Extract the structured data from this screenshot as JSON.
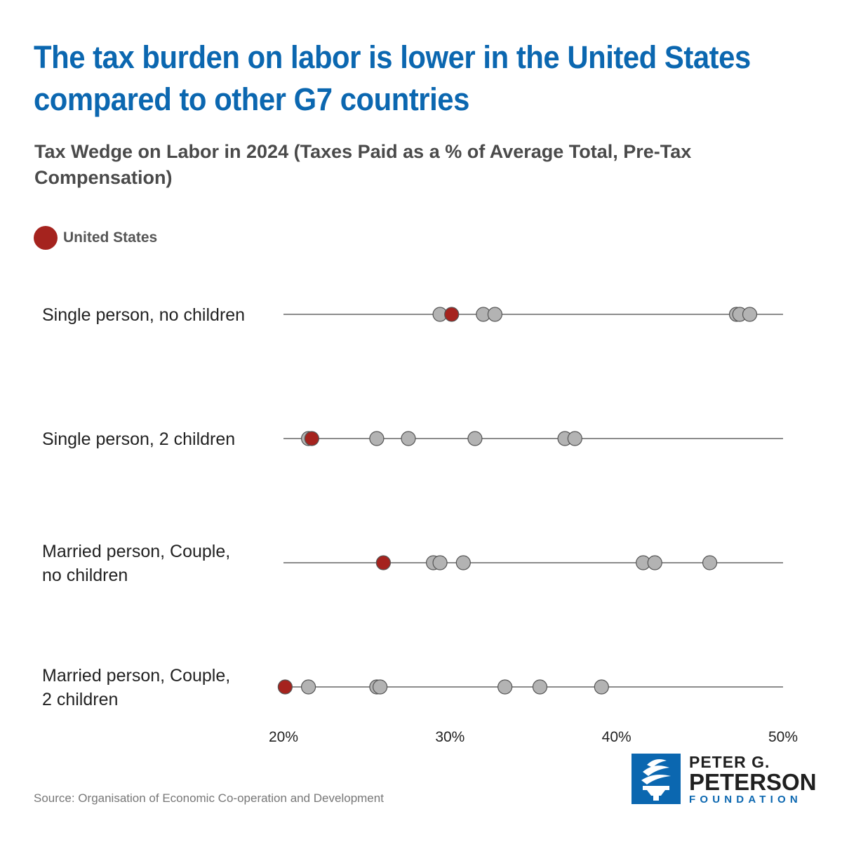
{
  "chart_data": {
    "type": "scatter",
    "title": "The tax burden on labor is lower in the United States compared to other G7 countries",
    "subtitle": "Tax Wedge on Labor in 2024 (Taxes Paid as a % of Average Total, Pre-Tax Compensation)",
    "legend": [
      {
        "label": "United States",
        "color": "#a5231e"
      }
    ],
    "legend_position": "top-left",
    "xlim": [
      20,
      50
    ],
    "xticks": [
      20,
      30,
      40,
      50
    ],
    "xtick_labels": [
      "20%",
      "30%",
      "40%",
      "50%"
    ],
    "xlabel": "",
    "ylabel": "",
    "grid": false,
    "point_color": "#b3b3b3",
    "highlight_color": "#a5231e",
    "categories": [
      {
        "label_lines": [
          "Single person, no children"
        ],
        "us": 30.1,
        "others": [
          29.4,
          32.0,
          32.7,
          47.2,
          47.4,
          48.0
        ]
      },
      {
        "label_lines": [
          "Single person, 2 children"
        ],
        "us": 21.7,
        "others": [
          21.5,
          25.6,
          27.5,
          31.5,
          36.9,
          37.5
        ]
      },
      {
        "label_lines": [
          "Married person, Couple,",
          "no children"
        ],
        "us": 26.0,
        "others": [
          29.0,
          29.4,
          30.8,
          41.6,
          42.3,
          45.6
        ]
      },
      {
        "label_lines": [
          "Married person, Couple,",
          "2 children"
        ],
        "us": 20.1,
        "others": [
          21.5,
          25.6,
          25.8,
          33.3,
          35.4,
          39.1
        ]
      }
    ]
  },
  "source": "Source: Organisation of Economic Co-operation and Development",
  "logo": {
    "line1": "PETER G.",
    "line2": "PETERSON",
    "line3": "FOUNDATION"
  }
}
